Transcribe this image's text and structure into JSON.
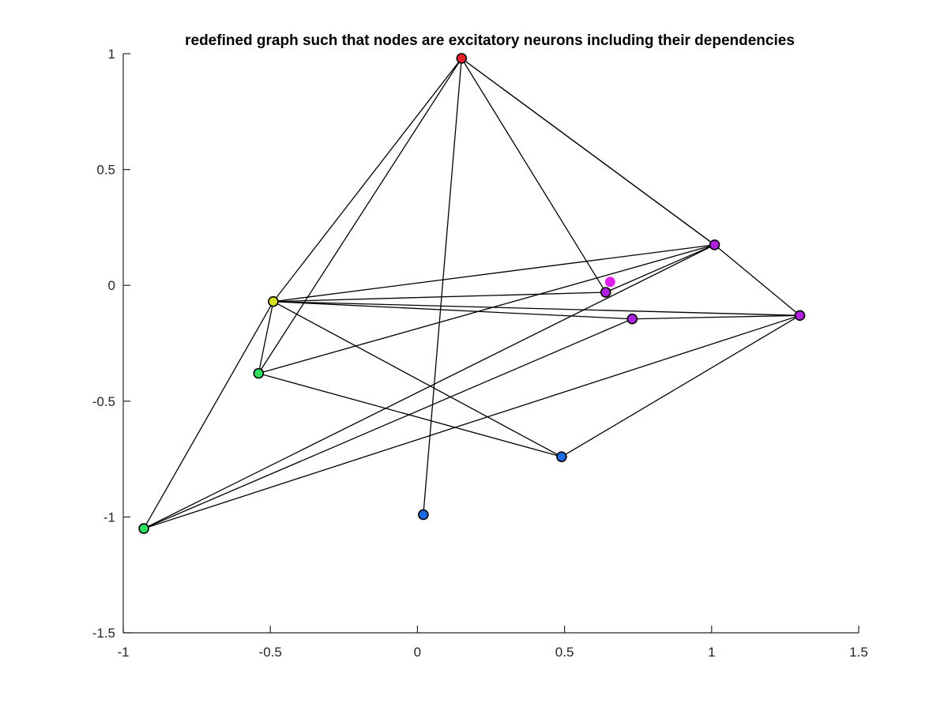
{
  "chart_data": {
    "type": "scatter",
    "title": "redefined graph such that nodes are excitatory neurons including their dependencies",
    "xlabel": "",
    "ylabel": "",
    "xlim": [
      -1,
      1.5
    ],
    "ylim": [
      -1.5,
      1
    ],
    "xticks": [
      -1,
      -0.5,
      0,
      0.5,
      1,
      1.5
    ],
    "xtick_labels": [
      "-1",
      "-0.5",
      "0",
      "0.5",
      "1",
      "1.5"
    ],
    "yticks": [
      -1.5,
      -1,
      -0.5,
      0,
      0.5,
      1
    ],
    "ytick_labels": [
      "-1.5",
      "-1",
      "-0.5",
      "0",
      "0.5",
      "1"
    ],
    "grid": false,
    "nodes": [
      {
        "id": "A",
        "x": 0.15,
        "y": 0.98,
        "color": "#e8202a"
      },
      {
        "id": "B",
        "x": -0.49,
        "y": -0.07,
        "color": "#d8e020"
      },
      {
        "id": "C",
        "x": -0.54,
        "y": -0.38,
        "color": "#2ee060"
      },
      {
        "id": "D",
        "x": -0.93,
        "y": -1.05,
        "color": "#2ee060"
      },
      {
        "id": "E",
        "x": 0.02,
        "y": -0.99,
        "color": "#1e6be8"
      },
      {
        "id": "F",
        "x": 0.49,
        "y": -0.74,
        "color": "#1e6be8"
      },
      {
        "id": "G",
        "x": 0.64,
        "y": -0.03,
        "color": "#b020e0"
      },
      {
        "id": "H",
        "x": 0.73,
        "y": -0.145,
        "color": "#b020e0"
      },
      {
        "id": "I",
        "x": 1.01,
        "y": 0.175,
        "color": "#b020e0"
      },
      {
        "id": "J",
        "x": 1.3,
        "y": -0.13,
        "color": "#b020e0"
      }
    ],
    "extra_points": [
      {
        "x": 0.655,
        "y": 0.015,
        "color": "#e020f0"
      }
    ],
    "edges": [
      [
        "A",
        "B"
      ],
      [
        "A",
        "C"
      ],
      [
        "A",
        "E"
      ],
      [
        "A",
        "G"
      ],
      [
        "A",
        "I"
      ],
      [
        "A",
        "I"
      ],
      [
        "B",
        "C"
      ],
      [
        "B",
        "D"
      ],
      [
        "B",
        "G"
      ],
      [
        "B",
        "H"
      ],
      [
        "B",
        "I"
      ],
      [
        "B",
        "J"
      ],
      [
        "B",
        "F"
      ],
      [
        "C",
        "I"
      ],
      [
        "C",
        "F"
      ],
      [
        "D",
        "I"
      ],
      [
        "D",
        "J"
      ],
      [
        "D",
        "H"
      ],
      [
        "F",
        "J"
      ],
      [
        "G",
        "I"
      ],
      [
        "H",
        "J"
      ],
      [
        "I",
        "J"
      ]
    ]
  }
}
